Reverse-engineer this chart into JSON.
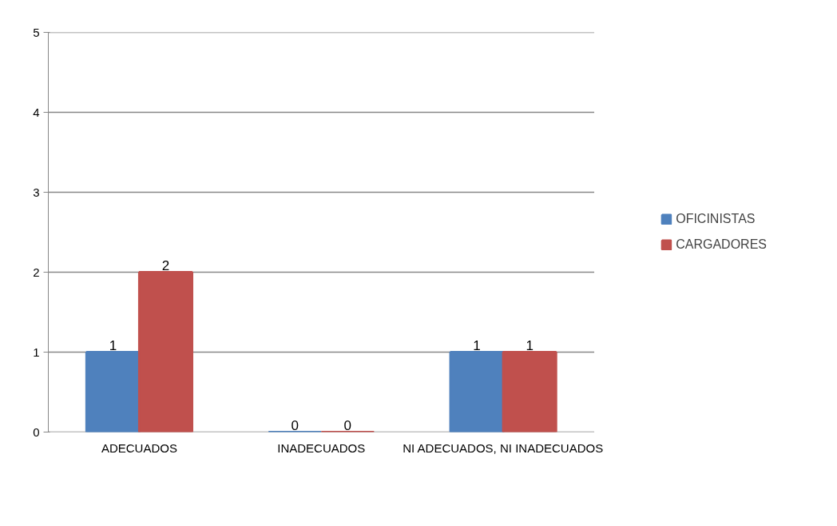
{
  "chart_data": {
    "type": "bar",
    "categories": [
      "ADECUADOS",
      "INADECUADOS",
      "NI ADECUADOS, NI INADECUADOS"
    ],
    "series": [
      {
        "name": "OFICINISTAS",
        "color": "#4f81bd",
        "values": [
          1,
          0,
          1
        ]
      },
      {
        "name": "CARGADORES",
        "color": "#c0504d",
        "values": [
          2,
          0,
          1
        ]
      }
    ],
    "ylim": [
      0,
      5
    ],
    "yticks": [
      0,
      1,
      2,
      3,
      4,
      5
    ],
    "grid": "y",
    "legend": "right",
    "data_labels": true
  }
}
